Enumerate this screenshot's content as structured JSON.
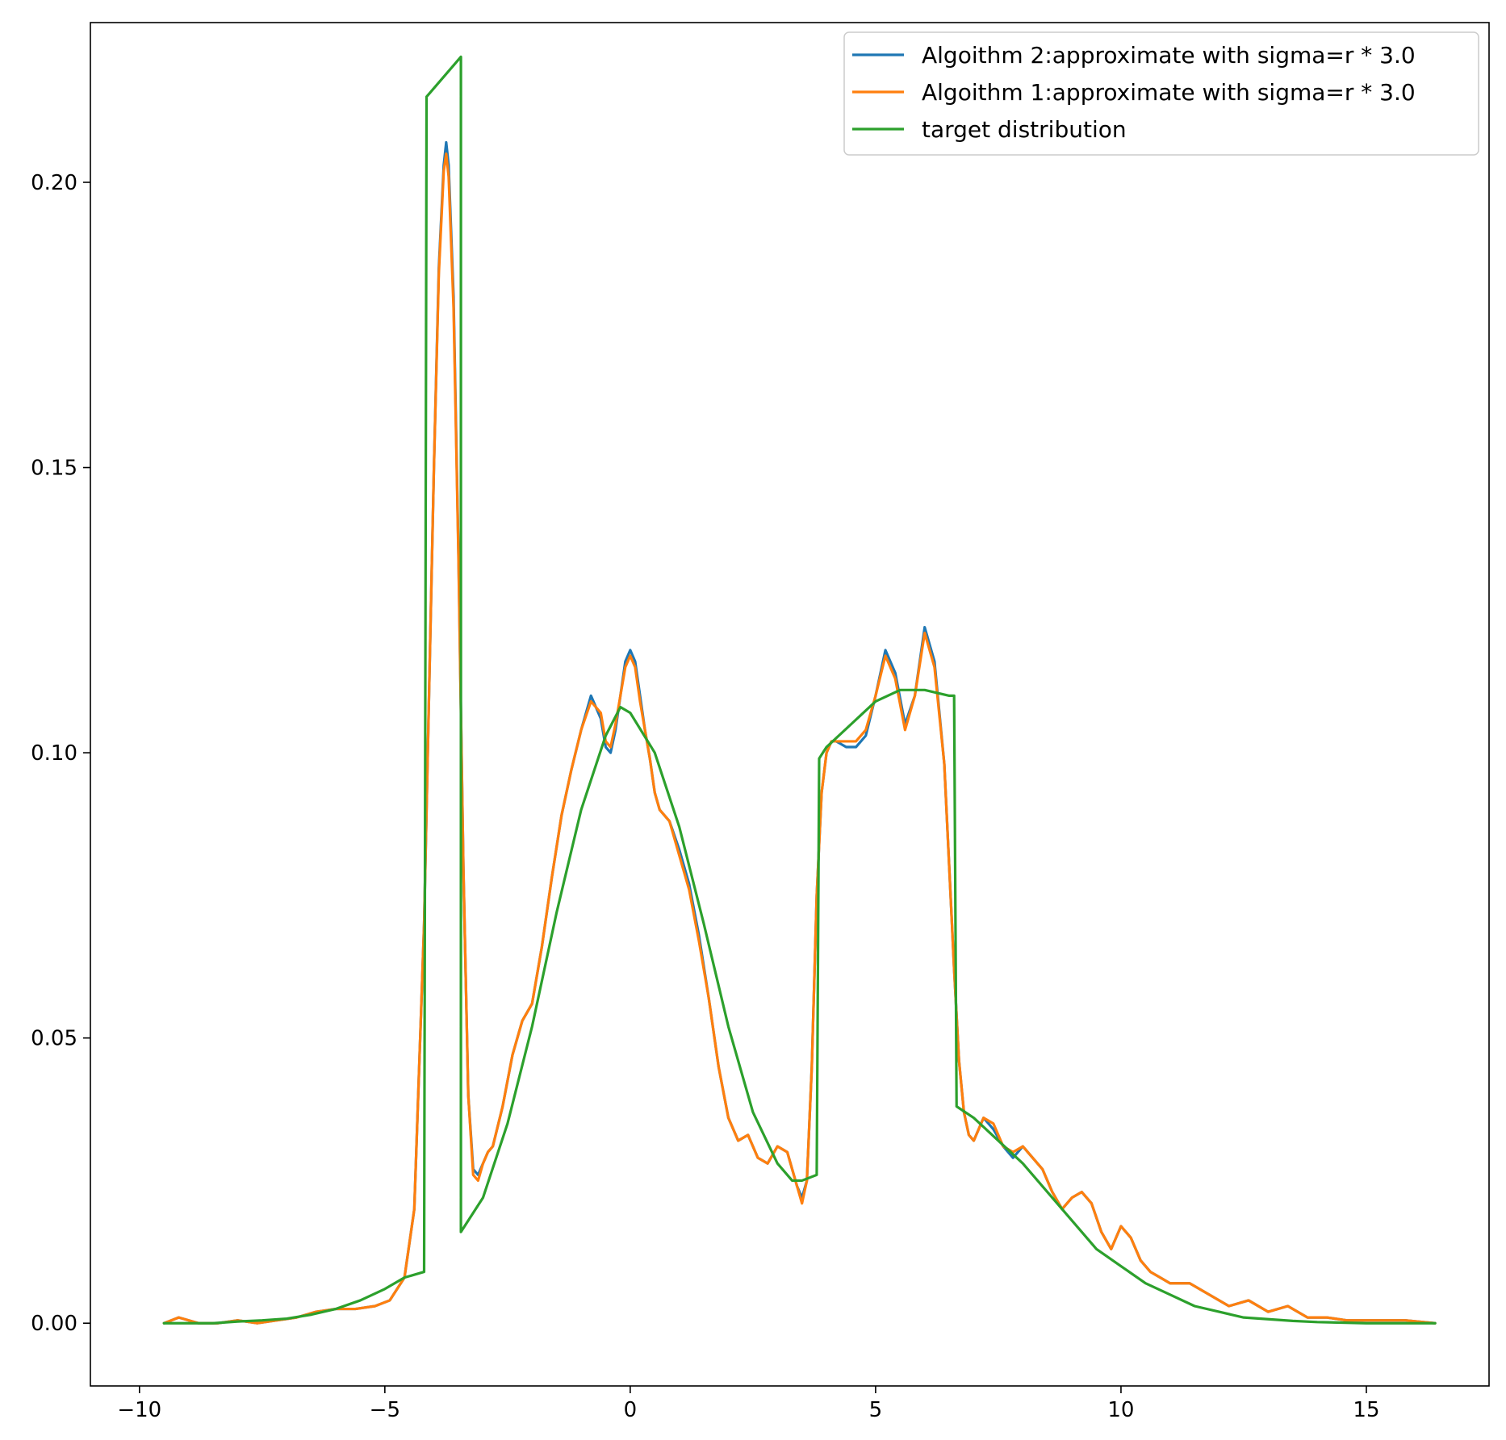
{
  "chart_data": {
    "type": "line",
    "title": "",
    "xlabel": "",
    "ylabel": "",
    "xlim": [
      -11.0,
      17.5
    ],
    "ylim": [
      -0.011,
      0.228
    ],
    "xticks": [
      -10,
      -5,
      0,
      5,
      10,
      15
    ],
    "xtick_labels": [
      "−10",
      "−5",
      "0",
      "5",
      "10",
      "15"
    ],
    "yticks": [
      0.0,
      0.05,
      0.1,
      0.15,
      0.2
    ],
    "ytick_labels": [
      "0.00",
      "0.05",
      "0.10",
      "0.15",
      "0.20"
    ],
    "grid": false,
    "legend_position": "top-right",
    "series": [
      {
        "name": "Algoithm 2:approximate with sigma=r * 3.0",
        "color": "#1f77b4",
        "x": [
          -9.5,
          -9.2,
          -8.8,
          -8.4,
          -8.0,
          -7.6,
          -7.2,
          -6.8,
          -6.4,
          -6.0,
          -5.6,
          -5.2,
          -4.9,
          -4.6,
          -4.4,
          -4.2,
          -4.0,
          -3.9,
          -3.8,
          -3.75,
          -3.7,
          -3.6,
          -3.5,
          -3.4,
          -3.3,
          -3.2,
          -3.1,
          -3.0,
          -2.9,
          -2.8,
          -2.6,
          -2.4,
          -2.2,
          -2.0,
          -1.8,
          -1.6,
          -1.4,
          -1.2,
          -1.0,
          -0.8,
          -0.6,
          -0.5,
          -0.4,
          -0.3,
          -0.2,
          -0.1,
          0.0,
          0.1,
          0.2,
          0.3,
          0.4,
          0.5,
          0.6,
          0.8,
          1.0,
          1.2,
          1.4,
          1.6,
          1.8,
          2.0,
          2.2,
          2.4,
          2.6,
          2.8,
          3.0,
          3.2,
          3.4,
          3.5,
          3.6,
          3.7,
          3.8,
          3.9,
          4.0,
          4.1,
          4.2,
          4.4,
          4.6,
          4.8,
          5.0,
          5.2,
          5.4,
          5.6,
          5.8,
          6.0,
          6.2,
          6.4,
          6.5,
          6.6,
          6.7,
          6.8,
          6.9,
          7.0,
          7.2,
          7.4,
          7.6,
          7.8,
          8.0,
          8.2,
          8.4,
          8.6,
          8.8,
          9.0,
          9.2,
          9.4,
          9.6,
          9.8,
          10.0,
          10.2,
          10.4,
          10.6,
          10.8,
          11.0,
          11.4,
          11.8,
          12.2,
          12.6,
          13.0,
          13.4,
          13.8,
          14.2,
          14.6,
          15.0,
          15.4,
          15.8,
          16.4
        ],
        "y": [
          0.0,
          0.001,
          0.0,
          0.0,
          0.0005,
          0.0,
          0.0005,
          0.001,
          0.002,
          0.0025,
          0.0025,
          0.003,
          0.004,
          0.008,
          0.02,
          0.07,
          0.15,
          0.185,
          0.203,
          0.207,
          0.203,
          0.18,
          0.135,
          0.08,
          0.04,
          0.027,
          0.026,
          0.028,
          0.03,
          0.031,
          0.038,
          0.047,
          0.053,
          0.056,
          0.066,
          0.078,
          0.089,
          0.097,
          0.104,
          0.11,
          0.106,
          0.101,
          0.1,
          0.104,
          0.11,
          0.116,
          0.118,
          0.116,
          0.11,
          0.104,
          0.099,
          0.093,
          0.09,
          0.088,
          0.083,
          0.077,
          0.068,
          0.057,
          0.045,
          0.036,
          0.032,
          0.033,
          0.029,
          0.028,
          0.031,
          0.03,
          0.024,
          0.022,
          0.025,
          0.045,
          0.075,
          0.093,
          0.1,
          0.102,
          0.102,
          0.101,
          0.101,
          0.103,
          0.11,
          0.118,
          0.114,
          0.105,
          0.11,
          0.122,
          0.116,
          0.098,
          0.08,
          0.062,
          0.046,
          0.037,
          0.033,
          0.032,
          0.036,
          0.034,
          0.031,
          0.029,
          0.031,
          0.029,
          0.027,
          0.023,
          0.02,
          0.022,
          0.023,
          0.021,
          0.016,
          0.013,
          0.017,
          0.015,
          0.011,
          0.009,
          0.008,
          0.007,
          0.007,
          0.005,
          0.003,
          0.004,
          0.002,
          0.003,
          0.001,
          0.001,
          0.0005,
          0.0005,
          0.0005,
          0.0005,
          0.0
        ]
      },
      {
        "name": "Algoithm 1:approximate with sigma=r * 3.0",
        "color": "#ff7f0e",
        "x": [
          -9.5,
          -9.2,
          -8.8,
          -8.4,
          -8.0,
          -7.6,
          -7.2,
          -6.8,
          -6.4,
          -6.0,
          -5.6,
          -5.2,
          -4.9,
          -4.6,
          -4.4,
          -4.2,
          -4.0,
          -3.9,
          -3.8,
          -3.75,
          -3.7,
          -3.6,
          -3.5,
          -3.4,
          -3.3,
          -3.2,
          -3.1,
          -3.0,
          -2.9,
          -2.8,
          -2.6,
          -2.4,
          -2.2,
          -2.0,
          -1.8,
          -1.6,
          -1.4,
          -1.2,
          -1.0,
          -0.8,
          -0.6,
          -0.5,
          -0.4,
          -0.3,
          -0.2,
          -0.1,
          0.0,
          0.1,
          0.2,
          0.3,
          0.4,
          0.5,
          0.6,
          0.8,
          1.0,
          1.2,
          1.4,
          1.6,
          1.8,
          2.0,
          2.2,
          2.4,
          2.6,
          2.8,
          3.0,
          3.2,
          3.4,
          3.5,
          3.6,
          3.7,
          3.8,
          3.9,
          4.0,
          4.1,
          4.2,
          4.4,
          4.6,
          4.8,
          5.0,
          5.2,
          5.4,
          5.6,
          5.8,
          6.0,
          6.2,
          6.4,
          6.5,
          6.6,
          6.7,
          6.8,
          6.9,
          7.0,
          7.2,
          7.4,
          7.6,
          7.8,
          8.0,
          8.2,
          8.4,
          8.6,
          8.8,
          9.0,
          9.2,
          9.4,
          9.6,
          9.8,
          10.0,
          10.2,
          10.4,
          10.6,
          10.8,
          11.0,
          11.4,
          11.8,
          12.2,
          12.6,
          13.0,
          13.4,
          13.8,
          14.2,
          14.6,
          15.0,
          15.4,
          15.8,
          16.4
        ],
        "y": [
          0.0,
          0.001,
          0.0,
          0.0,
          0.0005,
          0.0,
          0.0005,
          0.001,
          0.002,
          0.0025,
          0.0025,
          0.003,
          0.004,
          0.008,
          0.02,
          0.07,
          0.15,
          0.184,
          0.202,
          0.205,
          0.201,
          0.178,
          0.134,
          0.08,
          0.04,
          0.026,
          0.025,
          0.028,
          0.03,
          0.031,
          0.038,
          0.047,
          0.053,
          0.056,
          0.066,
          0.078,
          0.089,
          0.097,
          0.104,
          0.109,
          0.107,
          0.102,
          0.101,
          0.105,
          0.11,
          0.115,
          0.117,
          0.115,
          0.109,
          0.104,
          0.099,
          0.093,
          0.09,
          0.088,
          0.082,
          0.076,
          0.067,
          0.057,
          0.045,
          0.036,
          0.032,
          0.033,
          0.029,
          0.028,
          0.031,
          0.03,
          0.024,
          0.021,
          0.025,
          0.045,
          0.075,
          0.093,
          0.1,
          0.102,
          0.102,
          0.102,
          0.102,
          0.104,
          0.11,
          0.117,
          0.113,
          0.104,
          0.11,
          0.121,
          0.115,
          0.098,
          0.08,
          0.062,
          0.046,
          0.037,
          0.033,
          0.032,
          0.036,
          0.035,
          0.031,
          0.03,
          0.031,
          0.029,
          0.027,
          0.023,
          0.02,
          0.022,
          0.023,
          0.021,
          0.016,
          0.013,
          0.017,
          0.015,
          0.011,
          0.009,
          0.008,
          0.007,
          0.007,
          0.005,
          0.003,
          0.004,
          0.002,
          0.003,
          0.001,
          0.001,
          0.0005,
          0.0005,
          0.0005,
          0.0005,
          0.0
        ]
      },
      {
        "name": "target distribution",
        "color": "#2ca02c",
        "x": [
          -9.5,
          -9.0,
          -8.5,
          -8.0,
          -7.5,
          -7.0,
          -6.5,
          -6.0,
          -5.5,
          -5.0,
          -4.6,
          -4.2,
          -4.15,
          -3.45,
          -3.45,
          -3.0,
          -2.5,
          -2.0,
          -1.5,
          -1.0,
          -0.5,
          -0.2,
          0.0,
          0.5,
          1.0,
          1.5,
          2.0,
          2.5,
          3.0,
          3.3,
          3.5,
          3.8,
          3.85,
          4.0,
          4.5,
          5.0,
          5.5,
          6.0,
          6.5,
          6.6,
          6.65,
          7.0,
          7.5,
          8.0,
          8.5,
          9.0,
          9.5,
          10.0,
          10.5,
          11.0,
          11.5,
          12.0,
          12.5,
          13.0,
          13.5,
          14.0,
          14.5,
          15.0,
          15.5,
          16.0,
          16.4
        ],
        "y": [
          0.0,
          0.0,
          0.0,
          0.0003,
          0.0005,
          0.0008,
          0.0015,
          0.0025,
          0.004,
          0.006,
          0.008,
          0.009,
          0.215,
          0.222,
          0.016,
          0.022,
          0.035,
          0.052,
          0.072,
          0.09,
          0.103,
          0.108,
          0.107,
          0.1,
          0.087,
          0.07,
          0.052,
          0.037,
          0.028,
          0.025,
          0.025,
          0.026,
          0.099,
          0.101,
          0.105,
          0.109,
          0.111,
          0.111,
          0.11,
          0.11,
          0.038,
          0.036,
          0.032,
          0.028,
          0.023,
          0.018,
          0.013,
          0.01,
          0.007,
          0.005,
          0.003,
          0.002,
          0.001,
          0.0007,
          0.0004,
          0.0002,
          0.0001,
          0.0,
          0.0,
          0.0,
          0.0
        ]
      }
    ]
  }
}
